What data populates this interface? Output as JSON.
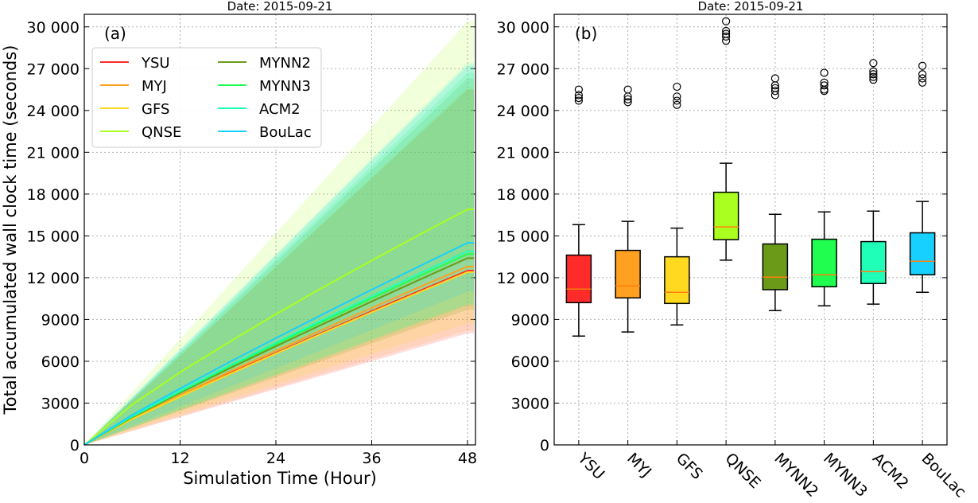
{
  "chart_data": [
    {
      "type": "line",
      "panel_label": "(a)",
      "title": "Date: 2015-09-21",
      "xlabel": "Simulation Time (Hour)",
      "ylabel": "Total accumulated wall clock time (seconds)",
      "xlim": [
        0,
        49
      ],
      "ylim": [
        0,
        30900
      ],
      "xticks": [
        0,
        12,
        24,
        36,
        48
      ],
      "yticks": [
        0,
        3000,
        6000,
        9000,
        12000,
        15000,
        18000,
        21000,
        24000,
        27000,
        30000
      ],
      "ytick_labels": [
        "0",
        "3000",
        "6000",
        "9000",
        "12 000",
        "15 000",
        "18 000",
        "21 000",
        "24 000",
        "27 000",
        "30 000"
      ],
      "grid": true,
      "legend_position": "top-left",
      "x": [
        0,
        6,
        12,
        18,
        24,
        30,
        36,
        42,
        48
      ],
      "series": [
        {
          "name": "YSU",
          "color": "#ff2a2a",
          "values": [
            0,
            1850,
            3490,
            5080,
            6600,
            8110,
            9600,
            11060,
            12500
          ],
          "band_end": [
            8000,
            25500
          ]
        },
        {
          "name": "MYJ",
          "color": "#ffa020",
          "values": [
            0,
            1890,
            3570,
            5200,
            6760,
            8310,
            9830,
            11330,
            12800
          ],
          "band_end": [
            8200,
            25500
          ]
        },
        {
          "name": "GFS",
          "color": "#ffd820",
          "values": [
            0,
            1840,
            3460,
            5030,
            6550,
            8050,
            9520,
            10970,
            12400
          ],
          "band_end": [
            8700,
            25700
          ]
        },
        {
          "name": "QNSE",
          "color": "#aaff20",
          "values": [
            0,
            2890,
            5210,
            7330,
            9380,
            11340,
            13230,
            15090,
            16900
          ],
          "band_end": [
            13300,
            30400
          ]
        },
        {
          "name": "MYNN2",
          "color": "#6a9a18",
          "values": [
            0,
            1980,
            3740,
            5440,
            7080,
            8700,
            10290,
            11860,
            13400
          ],
          "band_end": [
            9700,
            26300
          ]
        },
        {
          "name": "MYNN3",
          "color": "#20ff50",
          "values": [
            0,
            2030,
            3820,
            5560,
            7230,
            8890,
            10520,
            12120,
            13700
          ],
          "band_end": [
            10000,
            26700
          ]
        },
        {
          "name": "ACM2",
          "color": "#20ffb8",
          "values": [
            0,
            2060,
            3880,
            5640,
            7340,
            9020,
            10680,
            12300,
            13900
          ],
          "band_end": [
            10100,
            27400
          ]
        },
        {
          "name": "BouLac",
          "color": "#18d0ff",
          "values": [
            0,
            2150,
            4050,
            5890,
            7660,
            9410,
            11140,
            12830,
            14500
          ],
          "band_end": [
            11000,
            27200
          ]
        }
      ]
    },
    {
      "type": "box",
      "panel_label": "(b)",
      "title": "Date: 2015-09-21",
      "ylim": [
        0,
        30900
      ],
      "yticks": [
        0,
        3000,
        6000,
        9000,
        12000,
        15000,
        18000,
        21000,
        24000,
        27000,
        30000
      ],
      "ytick_labels": [
        "0",
        "3000",
        "6000",
        "9000",
        "12 000",
        "15 000",
        "18 000",
        "21 000",
        "24 000",
        "27 000",
        "30 000"
      ],
      "grid": true,
      "categories": [
        "YSU",
        "MYJ",
        "GFS",
        "QNSE",
        "MYNN2",
        "MYNN3",
        "ACM2",
        "BouLac"
      ],
      "boxes": [
        {
          "color": "#ff2a2a",
          "whislo": 7810,
          "q1": 10210,
          "med": 11180,
          "q3": 13620,
          "whishi": 15810,
          "fliers": [
            24700,
            24900,
            25100,
            25500
          ]
        },
        {
          "color": "#ffa020",
          "whislo": 8100,
          "q1": 10550,
          "med": 11410,
          "q3": 13960,
          "whishi": 16040,
          "fliers": [
            24600,
            24800,
            25000,
            25500
          ]
        },
        {
          "color": "#ffd820",
          "whislo": 8610,
          "q1": 10150,
          "med": 10950,
          "q3": 13500,
          "whishi": 15560,
          "fliers": [
            24400,
            24700,
            25000,
            25700
          ]
        },
        {
          "color": "#aaff20",
          "whislo": 13260,
          "q1": 14730,
          "med": 15640,
          "q3": 18130,
          "whishi": 20210,
          "fliers": [
            29000,
            29300,
            29500,
            29700,
            30400
          ]
        },
        {
          "color": "#6a9a18",
          "whislo": 9640,
          "q1": 11140,
          "med": 12040,
          "q3": 14420,
          "whishi": 16550,
          "fliers": [
            25100,
            25400,
            25600,
            25800,
            26300
          ]
        },
        {
          "color": "#20ff50",
          "whislo": 9980,
          "q1": 11350,
          "med": 12210,
          "q3": 14760,
          "whishi": 16720,
          "fliers": [
            25400,
            25500,
            25800,
            26000,
            26700
          ]
        },
        {
          "color": "#20ffb8",
          "whislo": 10100,
          "q1": 11580,
          "med": 12440,
          "q3": 14590,
          "whishi": 16780,
          "fliers": [
            26200,
            26400,
            26600,
            26800,
            27400
          ]
        },
        {
          "color": "#18d0ff",
          "whislo": 10950,
          "q1": 12210,
          "med": 13180,
          "q3": 15220,
          "whishi": 17470,
          "fliers": [
            26000,
            26300,
            26600,
            27200
          ]
        }
      ]
    }
  ]
}
